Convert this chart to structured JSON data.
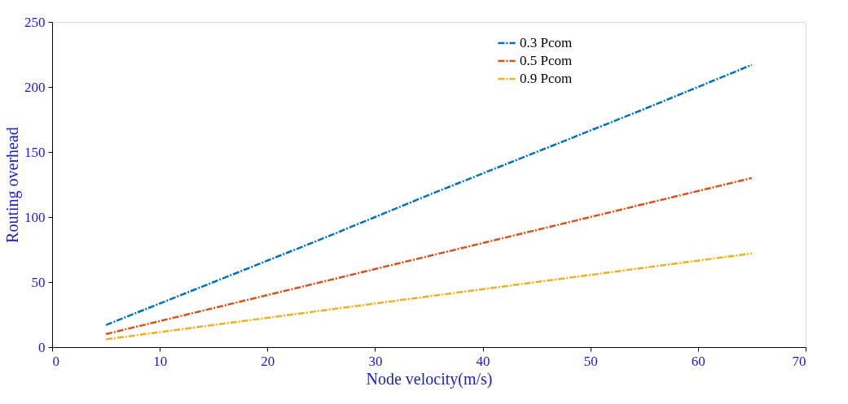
{
  "chart_data": {
    "type": "line",
    "xlabel": "Node velocity(m/s)",
    "ylabel": "Routing overhead",
    "x": [
      5,
      15,
      25,
      35,
      45,
      55,
      65
    ],
    "series": [
      {
        "name": "0.3 Pcom",
        "color": "#0072bd",
        "values": [
          17,
          50,
          83,
          117,
          150,
          183,
          217
        ]
      },
      {
        "name": "0.5 Pcom",
        "color": "#d95319",
        "values": [
          10,
          30,
          50,
          70,
          90,
          110,
          130
        ]
      },
      {
        "name": "0.9 Pcom",
        "color": "#edb120",
        "values": [
          6,
          17,
          28,
          39,
          50,
          61,
          72
        ]
      }
    ],
    "xlim": [
      0,
      70
    ],
    "xticks": [
      0,
      10,
      20,
      30,
      40,
      50,
      60,
      70
    ],
    "ylim": [
      0,
      250
    ],
    "yticks": [
      0,
      50,
      100,
      150,
      200,
      250
    ],
    "grid": false,
    "legend": "top right",
    "marker": "none",
    "line_style": "dashed"
  }
}
